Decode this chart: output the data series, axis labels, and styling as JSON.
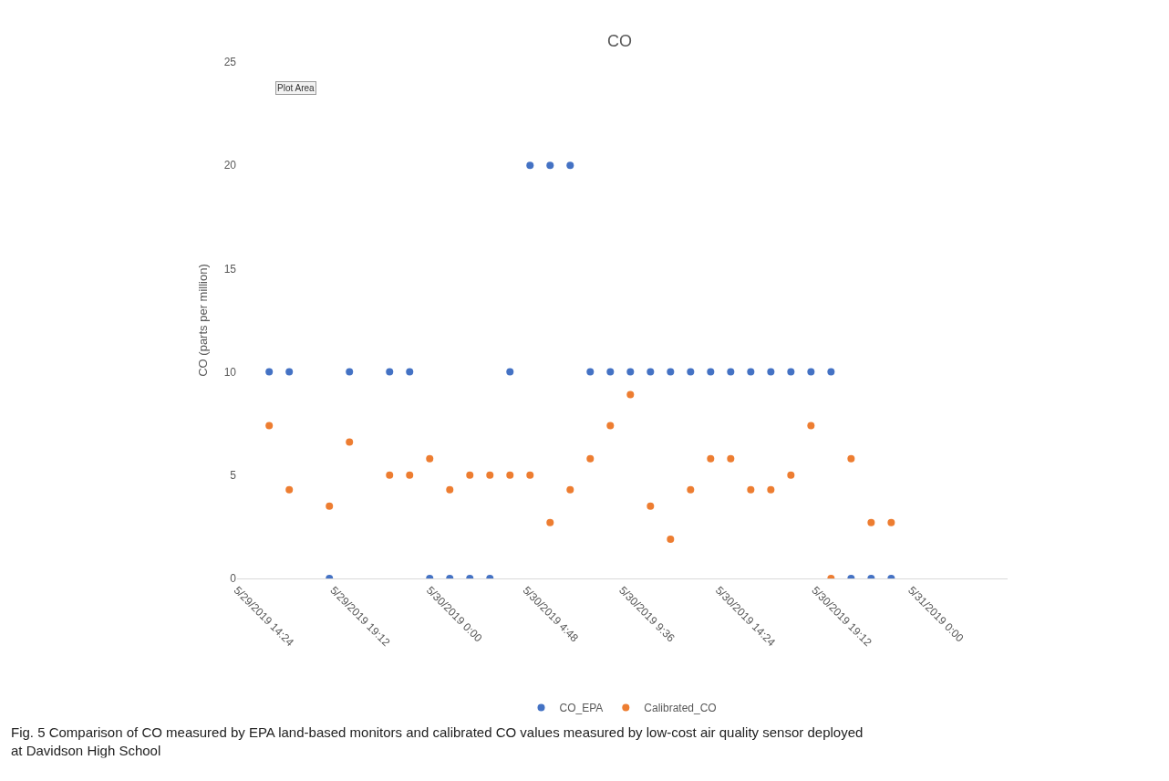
{
  "chart_data": {
    "type": "scatter",
    "title": "CO",
    "ylabel": "CO (parts per million)",
    "x": [
      "2019-05-29T16:00",
      "2019-05-29T17:00",
      "2019-05-29T19:00",
      "2019-05-29T20:00",
      "2019-05-29T22:00",
      "2019-05-29T23:00",
      "2019-05-30T00:00",
      "2019-05-30T01:00",
      "2019-05-30T02:00",
      "2019-05-30T03:00",
      "2019-05-30T04:00",
      "2019-05-30T05:00",
      "2019-05-30T06:00",
      "2019-05-30T07:00",
      "2019-05-30T08:00",
      "2019-05-30T09:00",
      "2019-05-30T10:00",
      "2019-05-30T11:00",
      "2019-05-30T12:00",
      "2019-05-30T13:00",
      "2019-05-30T14:00",
      "2019-05-30T15:00",
      "2019-05-30T16:00",
      "2019-05-30T17:00",
      "2019-05-30T18:00",
      "2019-05-30T19:00",
      "2019-05-30T20:00",
      "2019-05-30T21:00",
      "2019-05-30T22:00",
      "2019-05-30T23:00"
    ],
    "series": [
      {
        "name": "CO_EPA",
        "color": "#4472c4",
        "values": [
          10,
          10,
          0,
          10,
          10,
          10,
          0,
          0,
          0,
          0,
          10,
          20,
          20,
          20,
          10,
          10,
          10,
          10,
          10,
          10,
          10,
          10,
          10,
          10,
          10,
          10,
          10,
          0,
          0,
          0
        ]
      },
      {
        "name": "Calibrated_CO",
        "color": "#ed7d31",
        "values": [
          7.4,
          4.3,
          3.5,
          6.6,
          5,
          5,
          5.8,
          4.3,
          5,
          5,
          5,
          5,
          2.7,
          4.3,
          5.8,
          7.4,
          8.9,
          3.5,
          1.9,
          4.3,
          5.8,
          5.8,
          4.3,
          4.3,
          5,
          7.4,
          0,
          5.8,
          2.7,
          2.7
        ]
      }
    ],
    "xlim": [
      "2019-05-29T14:24",
      "2019-05-31T04:48"
    ],
    "xticks": [
      {
        "value": "2019-05-29T14:24",
        "label": "5/29/2019 14:24"
      },
      {
        "value": "2019-05-29T19:12",
        "label": "5/29/2019 19:12"
      },
      {
        "value": "2019-05-30T00:00",
        "label": "5/30/2019 0:00"
      },
      {
        "value": "2019-05-30T04:48",
        "label": "5/30/2019 4:48"
      },
      {
        "value": "2019-05-30T09:36",
        "label": "5/30/2019 9:36"
      },
      {
        "value": "2019-05-30T14:24",
        "label": "5/30/2019 14:24"
      },
      {
        "value": "2019-05-30T19:12",
        "label": "5/30/2019 19:12"
      },
      {
        "value": "2019-05-31T00:00",
        "label": "5/31/2019 0:00"
      }
    ],
    "ylim": [
      0,
      25
    ],
    "yticks": [
      0,
      5,
      10,
      15,
      20,
      25
    ],
    "legend": "bottom",
    "marker": "circle",
    "annotations": [
      "Plot Area",
      "Fig. 5 Comparison of CO measured by EPA land-based monitors and calibrated CO values measured by low-cost air quality sensor deployed at Davidson High School"
    ]
  }
}
